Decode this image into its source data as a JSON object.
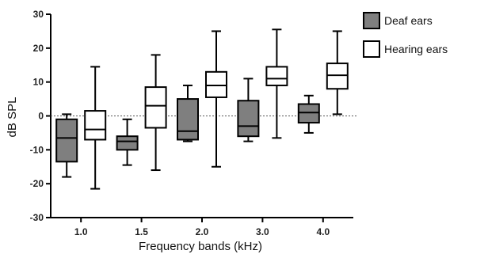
{
  "chart_data": {
    "type": "box",
    "xlabel": "Frequency bands (kHz)",
    "ylabel": "dB SPL",
    "ylim": [
      -30,
      30
    ],
    "yticks": [
      -30,
      -20,
      -10,
      0,
      10,
      20,
      30
    ],
    "categories": [
      "1.0",
      "1.5",
      "2.0",
      "3.0",
      "4.0"
    ],
    "reference_line": {
      "y": 0,
      "style": "dotted"
    },
    "legend_position": "top-right",
    "series": [
      {
        "name": "Deaf ears",
        "fill": "#7f7f7f",
        "boxes": [
          {
            "min": -18,
            "q1": -13.5,
            "median": -6.5,
            "q3": -1,
            "max": 0.5
          },
          {
            "min": -14.5,
            "q1": -10,
            "median": -7.5,
            "q3": -6,
            "max": -1
          },
          {
            "min": -7.5,
            "q1": -7,
            "median": -4.5,
            "q3": 5,
            "max": 9
          },
          {
            "min": -7.5,
            "q1": -6,
            "median": -3,
            "q3": 4.5,
            "max": 11
          },
          {
            "min": -5,
            "q1": -2,
            "median": 1,
            "q3": 3.5,
            "max": 6
          }
        ]
      },
      {
        "name": "Hearing ears",
        "fill": "#ffffff",
        "boxes": [
          {
            "min": -21.5,
            "q1": -7,
            "median": -4,
            "q3": 1.5,
            "max": 14.5
          },
          {
            "min": -16,
            "q1": -3.5,
            "median": 3,
            "q3": 8.5,
            "max": 18
          },
          {
            "min": -15,
            "q1": 5.5,
            "median": 9,
            "q3": 13,
            "max": 25
          },
          {
            "min": -6.5,
            "q1": 9,
            "median": 11,
            "q3": 14.5,
            "max": 25.5
          },
          {
            "min": 0.5,
            "q1": 8,
            "median": 12,
            "q3": 15.5,
            "max": 25
          }
        ]
      }
    ]
  }
}
